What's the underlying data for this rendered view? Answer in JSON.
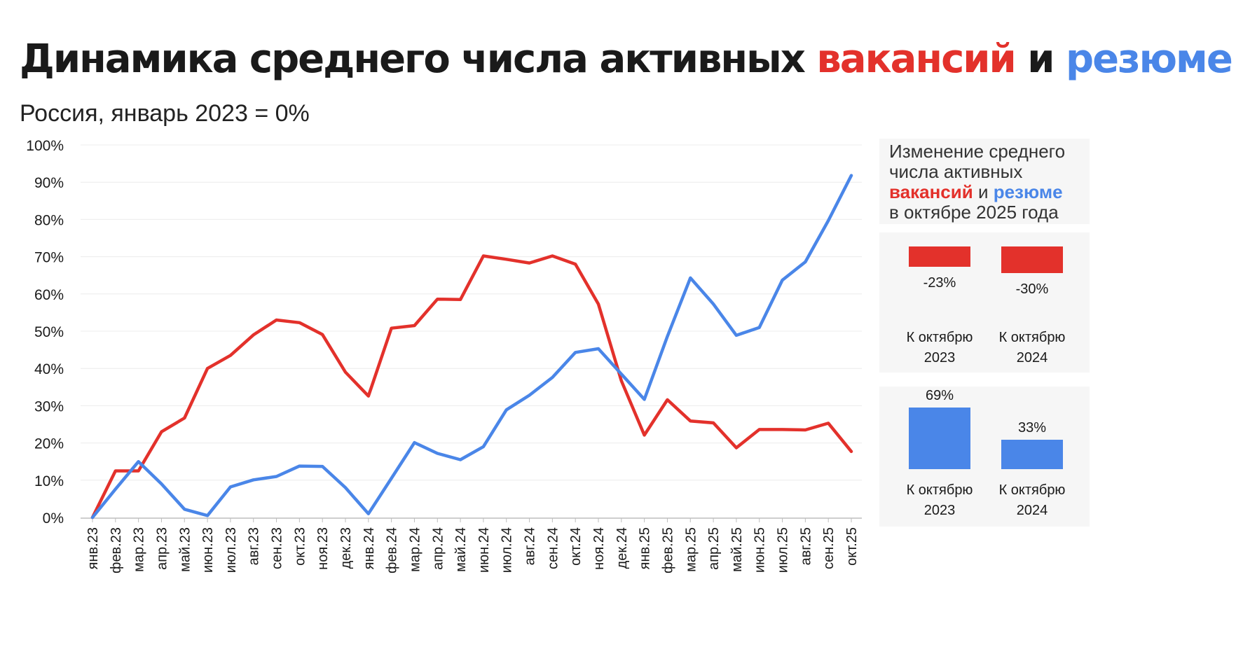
{
  "title": {
    "part1": "Динамика среднего числа активных",
    "vacancies": "вакансий",
    "and": "и",
    "resumes": "резюме"
  },
  "subtitle": "Россия, январь 2023 = 0%",
  "colors": {
    "vacancies": "#e3312b",
    "resumes": "#4a86e8",
    "grid": "#ececec"
  },
  "chart_data": {
    "type": "line",
    "title": "Динамика среднего числа активных вакансий и резюме",
    "subtitle": "Россия, январь 2023 = 0%",
    "x": [
      "янв.23",
      "фев.23",
      "мар.23",
      "апр.23",
      "май.23",
      "июн.23",
      "июл.23",
      "авг.23",
      "сен.23",
      "окт.23",
      "ноя.23",
      "дек.23",
      "янв.24",
      "фев.24",
      "мар.24",
      "апр.24",
      "май.24",
      "июн.24",
      "июл.24",
      "авг.24",
      "сен.24",
      "окт.24",
      "ноя.24",
      "дек.24",
      "янв.25",
      "фев.25",
      "мар.25",
      "апр.25",
      "май.25",
      "июн.25",
      "июл.25",
      "авг.25",
      "сен.25",
      "окт.25"
    ],
    "y_ticks": [
      "0%",
      "10%",
      "20%",
      "30%",
      "40%",
      "50%",
      "60%",
      "70%",
      "80%",
      "90%",
      "100%"
    ],
    "ylim": [
      0,
      100
    ],
    "grid": true,
    "series": [
      {
        "name": "вакансий",
        "color": "#e3312b",
        "values": [
          0,
          12.5,
          12.5,
          23,
          26.7,
          40,
          43.5,
          49,
          53,
          52.3,
          49.1,
          39,
          32.6,
          50.8,
          51.5,
          58.6,
          58.5,
          70.2,
          69.3,
          68.3,
          70.2,
          68,
          57.3,
          36.7,
          22.1,
          31.6,
          25.9,
          25.4,
          18.7,
          23.6,
          23.6,
          23.5,
          25.3,
          17.7
        ]
      },
      {
        "name": "резюме",
        "color": "#4a86e8",
        "values": [
          0,
          7.6,
          15,
          9,
          2.2,
          0.5,
          8.2,
          10.1,
          11,
          13.8,
          13.7,
          8,
          1,
          10.5,
          20.1,
          17.2,
          15.5,
          19,
          28.9,
          32.8,
          37.6,
          44.3,
          45.3,
          38.5,
          31.7,
          48.6,
          64.3,
          57.3,
          48.9,
          51,
          63.7,
          68.6,
          79.7,
          91.8
        ]
      }
    ]
  },
  "panel": {
    "heading_line1": "Изменение среднего",
    "heading_line2": "числа активных",
    "heading_vac": "вакансий",
    "heading_and": "и",
    "heading_res": "резюме",
    "heading_line4": "в октябре 2025 года",
    "vacancies": [
      {
        "value": -23,
        "label": "-23%",
        "caption_line1": "К октябрю",
        "caption_line2": "2023"
      },
      {
        "value": -30,
        "label": "-30%",
        "caption_line1": "К октябрю",
        "caption_line2": "2024"
      }
    ],
    "resumes": [
      {
        "value": 69,
        "label": "69%",
        "caption_line1": "К октябрю",
        "caption_line2": "2023"
      },
      {
        "value": 33,
        "label": "33%",
        "caption_line1": "К октябрю",
        "caption_line2": "2024"
      }
    ]
  }
}
